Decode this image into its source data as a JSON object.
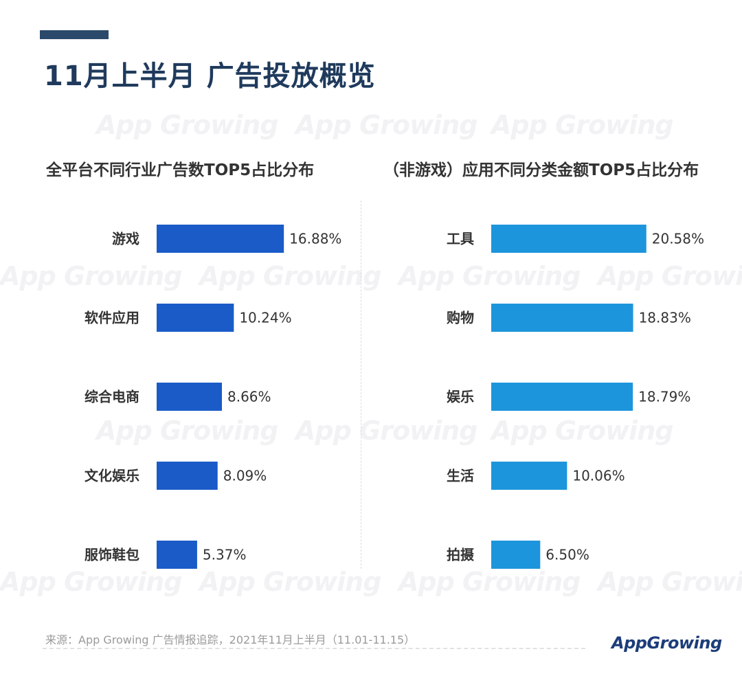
{
  "header": {
    "title": "11月上半月 广告投放概览"
  },
  "watermark": {
    "text": "App Growing"
  },
  "colors": {
    "left_bar": "#1a5bc7",
    "right_bar": "#1d95dc",
    "title": "#1f3a5c"
  },
  "chart_data": [
    {
      "type": "bar",
      "orientation": "horizontal",
      "title": "全平台不同行业广告数TOP5占比分布",
      "categories": [
        "游戏",
        "软件应用",
        "综合电商",
        "文化娱乐",
        "服饰鞋包"
      ],
      "values": [
        16.88,
        10.24,
        8.66,
        8.09,
        5.37
      ],
      "labels": [
        "16.88%",
        "10.24%",
        "8.66%",
        "8.09%",
        "5.37%"
      ],
      "unit": "%"
    },
    {
      "type": "bar",
      "orientation": "horizontal",
      "title": "（非游戏）应用不同分类金额TOP5占比分布",
      "categories": [
        "工具",
        "购物",
        "娱乐",
        "生活",
        "拍摄"
      ],
      "values": [
        20.58,
        18.83,
        18.79,
        10.06,
        6.5
      ],
      "labels": [
        "20.58%",
        "18.83%",
        "18.79%",
        "10.06%",
        "6.50%"
      ],
      "unit": "%"
    }
  ],
  "footer": {
    "source": "来源：App Growing 广告情报追踪，2021年11月上半月（11.01-11.15）",
    "logo_text": "AppGrowing"
  }
}
